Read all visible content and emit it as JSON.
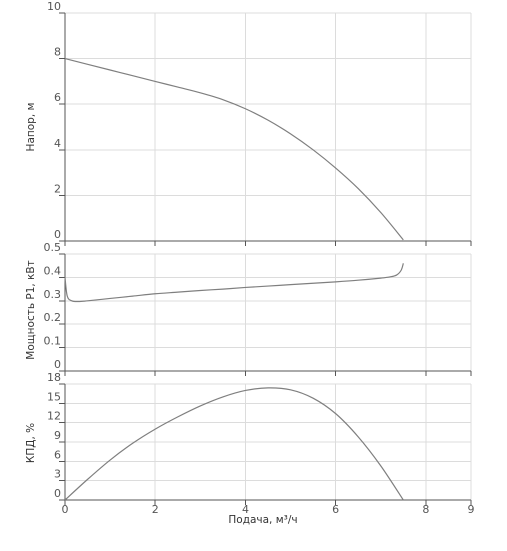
{
  "chart_data": [
    {
      "type": "line",
      "ylabel": "Напор, м",
      "xlim": [
        0,
        9
      ],
      "ylim": [
        0,
        10
      ],
      "yticks": [
        0,
        2,
        4,
        6,
        8,
        10
      ],
      "grid": true,
      "series": [
        {
          "color": "#7f7f7f",
          "x": [
            0,
            0.5,
            1,
            1.5,
            2,
            2.5,
            3,
            3.5,
            4,
            4.5,
            5,
            5.5,
            6,
            6.5,
            7,
            7.5
          ],
          "y": [
            8.0,
            7.75,
            7.5,
            7.25,
            7.0,
            6.75,
            6.5,
            6.2,
            5.8,
            5.3,
            4.7,
            4.0,
            3.2,
            2.3,
            1.25,
            0.05
          ]
        }
      ]
    },
    {
      "type": "line",
      "ylabel": "Мощность P1, кВт",
      "xlim": [
        0,
        9
      ],
      "ylim": [
        0,
        0.5
      ],
      "yticks": [
        0,
        0.1,
        0.2,
        0.3,
        0.4,
        0.5
      ],
      "grid": true,
      "series": [
        {
          "color": "#7f7f7f",
          "x": [
            0,
            0.05,
            0.15,
            0.3,
            0.5,
            1,
            1.5,
            2,
            2.5,
            3,
            3.5,
            4,
            4.5,
            5,
            5.5,
            6,
            6.5,
            7,
            7.2,
            7.35,
            7.45,
            7.5
          ],
          "y": [
            0.4,
            0.32,
            0.3,
            0.297,
            0.3,
            0.31,
            0.32,
            0.33,
            0.337,
            0.344,
            0.35,
            0.357,
            0.363,
            0.369,
            0.375,
            0.381,
            0.388,
            0.397,
            0.402,
            0.41,
            0.43,
            0.46
          ]
        }
      ]
    },
    {
      "type": "line",
      "ylabel": "КПД, %",
      "xlabel": "Подача, м³/ч",
      "xlim": [
        0,
        9
      ],
      "ylim": [
        0,
        18
      ],
      "xticks": [
        0,
        2,
        4,
        6,
        8,
        9
      ],
      "yticks": [
        0,
        3,
        6,
        9,
        12,
        15,
        18
      ],
      "grid": true,
      "series": [
        {
          "color": "#7f7f7f",
          "x": [
            0,
            0.5,
            1,
            1.5,
            2,
            2.5,
            3,
            3.5,
            4,
            4.5,
            5,
            5.5,
            6,
            6.5,
            7,
            7.5
          ],
          "y": [
            0,
            3.2,
            6.2,
            8.8,
            11.0,
            12.9,
            14.6,
            16.0,
            17.0,
            17.4,
            17.1,
            15.8,
            13.4,
            9.8,
            5.3,
            0
          ]
        }
      ]
    }
  ]
}
